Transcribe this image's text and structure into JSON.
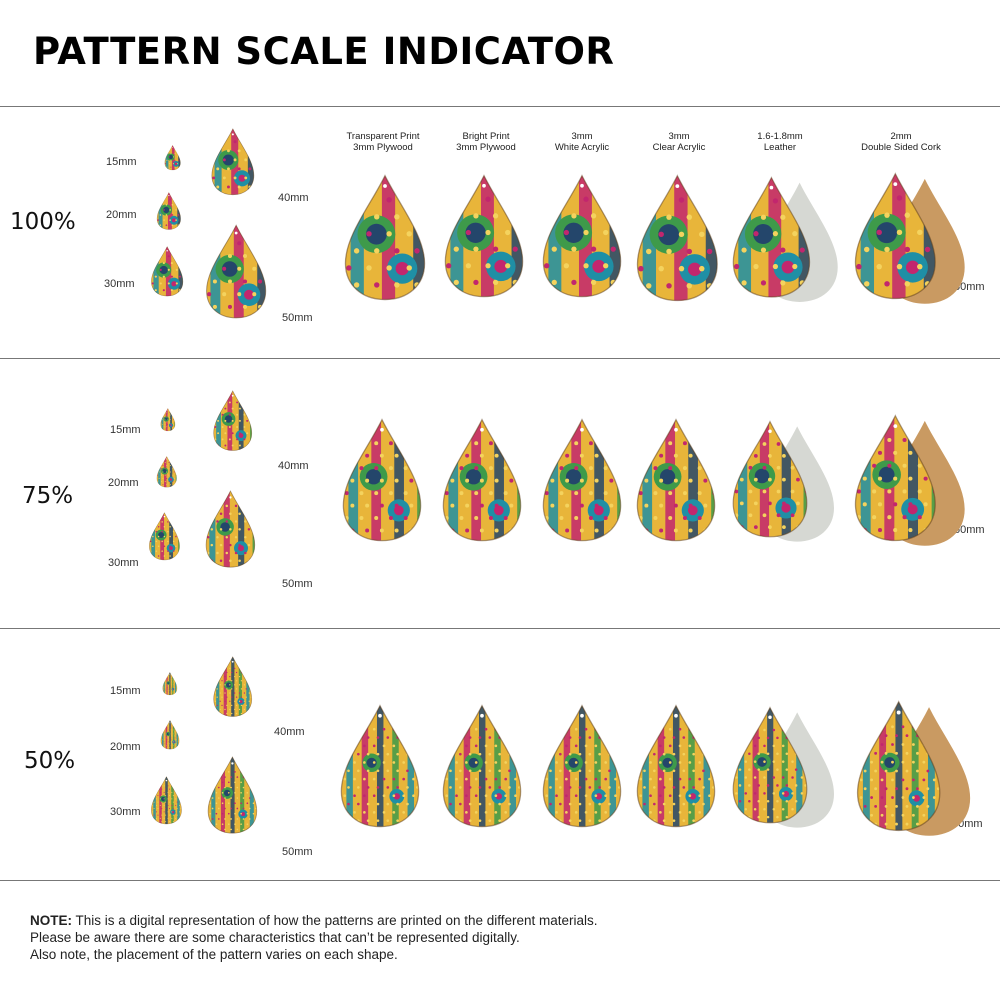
{
  "title": "PATTERN SCALE INDICATOR",
  "materials": [
    {
      "line1": "Transparent Print",
      "line2": "3mm Plywood"
    },
    {
      "line1": "Bright Print",
      "line2": "3mm Plywood"
    },
    {
      "line1": "3mm",
      "line2": "White Acrylic"
    },
    {
      "line1": "3mm",
      "line2": "Clear Acrylic"
    },
    {
      "line1": "1.6-1.8mm",
      "line2": "Leather"
    },
    {
      "line1": "2mm",
      "line2": "Double Sided Cork"
    }
  ],
  "sections": [
    {
      "scale": "100%",
      "sizes": {
        "s15": "15mm",
        "s20": "20mm",
        "s30": "30mm",
        "s40": "40mm",
        "s50": "50mm",
        "s60": "60mm"
      }
    },
    {
      "scale": "75%",
      "sizes": {
        "s15": "15mm",
        "s20": "20mm",
        "s30": "30mm",
        "s40": "40mm",
        "s50": "50mm",
        "s60": "60mm"
      }
    },
    {
      "scale": "50%",
      "sizes": {
        "s15": "15mm",
        "s20": "20mm",
        "s30": "30mm",
        "s40": "40mm",
        "s50": "50mm",
        "s60": "60mm"
      }
    }
  ],
  "note": {
    "label": "NOTE:",
    "line1": "This is a digital representation of how the patterns are printed on the different materials.",
    "line2": "Please be aware there are some characteristics that can’t be represented digitally.",
    "line3": "Also note, the placement of the pattern varies on each shape."
  },
  "colors": {
    "yellow": "#e8b53a",
    "teal": "#1f8fa5",
    "green": "#3e9a4a",
    "magenta": "#c2266e",
    "navy": "#24466b",
    "leather_back": "#d6d8d3",
    "cork_back": "#c99a62"
  }
}
